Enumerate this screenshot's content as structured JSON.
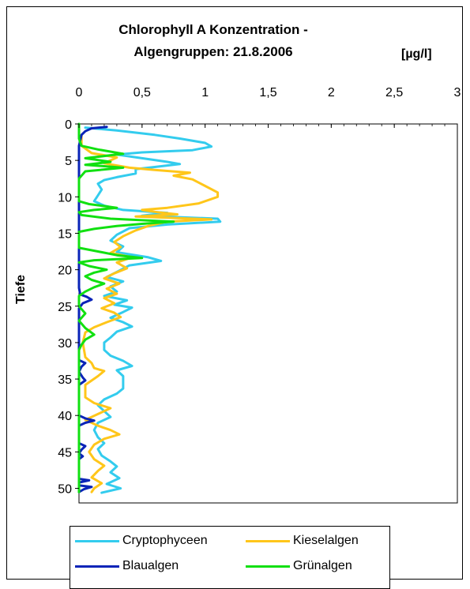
{
  "chart_data": {
    "type": "line",
    "title_line1": "Chlorophyll A Konzentration -",
    "title_line2": "Algengruppen: 21.8.2006",
    "unit": "[µg/l]",
    "xlabel": "",
    "ylabel": "Tiefe",
    "xlim": [
      0,
      3
    ],
    "ylim": [
      0,
      52
    ],
    "x_axis_position": "top",
    "y_inverted": true,
    "x_ticks": [
      0,
      0.5,
      1,
      1.5,
      2,
      2.5,
      3
    ],
    "x_tick_labels": [
      "0",
      "0,5",
      "1",
      "1,5",
      "2",
      "2,5",
      "3"
    ],
    "y_ticks": [
      0,
      5,
      10,
      15,
      20,
      25,
      30,
      35,
      40,
      45,
      50
    ],
    "y_tick_labels": [
      "0",
      "5",
      "10",
      "15",
      "20",
      "25",
      "30",
      "35",
      "40",
      "45",
      "50"
    ],
    "grid": false,
    "legend_position": "bottom",
    "series": [
      {
        "name": "Cryptophyceen",
        "color": "#33CCEE",
        "points": [
          [
            0.05,
            0.5
          ],
          [
            0.3,
            0.9
          ],
          [
            0.6,
            1.5
          ],
          [
            0.8,
            2.0
          ],
          [
            1.0,
            2.6
          ],
          [
            1.05,
            3.1
          ],
          [
            0.9,
            3.6
          ],
          [
            0.5,
            3.9
          ],
          [
            0.3,
            4.2
          ],
          [
            0.5,
            4.7
          ],
          [
            0.7,
            5.2
          ],
          [
            0.8,
            5.5
          ],
          [
            0.6,
            5.9
          ],
          [
            0.45,
            6.2
          ],
          [
            0.45,
            6.8
          ],
          [
            0.3,
            7.3
          ],
          [
            0.2,
            7.7
          ],
          [
            0.15,
            8.2
          ],
          [
            0.18,
            9.0
          ],
          [
            0.15,
            9.8
          ],
          [
            0.12,
            10.6
          ],
          [
            0.2,
            11.2
          ],
          [
            0.35,
            11.8
          ],
          [
            0.7,
            12.2
          ],
          [
            0.5,
            12.6
          ],
          [
            1.1,
            13.0
          ],
          [
            1.12,
            13.4
          ],
          [
            0.7,
            13.8
          ],
          [
            0.4,
            14.3
          ],
          [
            0.3,
            15.2
          ],
          [
            0.25,
            16.0
          ],
          [
            0.35,
            16.8
          ],
          [
            0.3,
            17.6
          ],
          [
            0.55,
            18.3
          ],
          [
            0.65,
            18.8
          ],
          [
            0.4,
            19.4
          ],
          [
            0.3,
            20.3
          ],
          [
            0.22,
            21.0
          ],
          [
            0.35,
            21.6
          ],
          [
            0.25,
            22.3
          ],
          [
            0.3,
            23.0
          ],
          [
            0.2,
            23.6
          ],
          [
            0.38,
            24.2
          ],
          [
            0.28,
            24.8
          ],
          [
            0.42,
            25.2
          ],
          [
            0.35,
            25.8
          ],
          [
            0.25,
            26.6
          ],
          [
            0.35,
            27.2
          ],
          [
            0.42,
            27.8
          ],
          [
            0.3,
            28.5
          ],
          [
            0.25,
            29.3
          ],
          [
            0.2,
            30.0
          ],
          [
            0.2,
            31.0
          ],
          [
            0.25,
            31.8
          ],
          [
            0.35,
            32.5
          ],
          [
            0.42,
            33.2
          ],
          [
            0.3,
            33.8
          ],
          [
            0.35,
            34.6
          ],
          [
            0.35,
            35.5
          ],
          [
            0.35,
            36.3
          ],
          [
            0.3,
            37.0
          ],
          [
            0.2,
            37.8
          ],
          [
            0.15,
            38.6
          ],
          [
            0.2,
            39.4
          ],
          [
            0.25,
            40.2
          ],
          [
            0.15,
            41.0
          ],
          [
            0.12,
            42.0
          ],
          [
            0.15,
            43.0
          ],
          [
            0.2,
            43.8
          ],
          [
            0.15,
            44.6
          ],
          [
            0.18,
            45.5
          ],
          [
            0.25,
            46.3
          ],
          [
            0.3,
            47.0
          ],
          [
            0.25,
            47.8
          ],
          [
            0.32,
            48.6
          ],
          [
            0.22,
            49.4
          ],
          [
            0.33,
            50.0
          ],
          [
            0.18,
            50.6
          ]
        ]
      },
      {
        "name": "Kieselalgen",
        "color": "#FFC61A",
        "points": [
          [
            0.02,
            1.5
          ],
          [
            0.02,
            3.0
          ],
          [
            0.1,
            4.0
          ],
          [
            0.3,
            4.6
          ],
          [
            0.2,
            5.4
          ],
          [
            0.4,
            6.0
          ],
          [
            0.6,
            6.3
          ],
          [
            0.88,
            6.7
          ],
          [
            0.75,
            7.1
          ],
          [
            0.9,
            7.6
          ],
          [
            1.0,
            8.5
          ],
          [
            1.1,
            9.4
          ],
          [
            1.1,
            10.0
          ],
          [
            0.95,
            10.9
          ],
          [
            0.7,
            11.5
          ],
          [
            0.5,
            11.8
          ],
          [
            0.62,
            12.1
          ],
          [
            0.78,
            12.4
          ],
          [
            0.45,
            12.7
          ],
          [
            1.05,
            13.1
          ],
          [
            0.7,
            13.4
          ],
          [
            0.55,
            14.0
          ],
          [
            0.45,
            14.6
          ],
          [
            0.35,
            15.4
          ],
          [
            0.28,
            16.2
          ],
          [
            0.33,
            16.9
          ],
          [
            0.25,
            17.7
          ],
          [
            0.42,
            18.3
          ],
          [
            0.3,
            19.0
          ],
          [
            0.38,
            19.8
          ],
          [
            0.28,
            20.5
          ],
          [
            0.2,
            21.2
          ],
          [
            0.32,
            21.9
          ],
          [
            0.22,
            22.6
          ],
          [
            0.3,
            23.3
          ],
          [
            0.2,
            23.9
          ],
          [
            0.28,
            24.6
          ],
          [
            0.18,
            25.3
          ],
          [
            0.28,
            25.9
          ],
          [
            0.33,
            26.5
          ],
          [
            0.22,
            27.2
          ],
          [
            0.12,
            27.9
          ],
          [
            0.05,
            28.6
          ],
          [
            0.03,
            30.0
          ],
          [
            0.05,
            32.0
          ],
          [
            0.1,
            32.8
          ],
          [
            0.12,
            33.5
          ],
          [
            0.2,
            33.9
          ],
          [
            0.15,
            34.6
          ],
          [
            0.05,
            35.8
          ],
          [
            0.05,
            37.5
          ],
          [
            0.12,
            38.3
          ],
          [
            0.25,
            39.0
          ],
          [
            0.15,
            39.8
          ],
          [
            0.05,
            40.6
          ],
          [
            0.15,
            41.4
          ],
          [
            0.25,
            42.0
          ],
          [
            0.32,
            42.6
          ],
          [
            0.2,
            43.2
          ],
          [
            0.12,
            44.0
          ],
          [
            0.08,
            45.0
          ],
          [
            0.12,
            46.0
          ],
          [
            0.2,
            46.9
          ],
          [
            0.15,
            47.6
          ],
          [
            0.1,
            48.5
          ],
          [
            0.18,
            49.3
          ],
          [
            0.12,
            50.0
          ],
          [
            0.1,
            50.5
          ]
        ]
      },
      {
        "name": "Blaualgen",
        "color": "#0A24B8",
        "points": [
          [
            0.22,
            0.4
          ],
          [
            0.1,
            0.6
          ],
          [
            0.05,
            1.0
          ],
          [
            0.02,
            1.5
          ],
          [
            0.0,
            3.0
          ],
          [
            0.0,
            5.0
          ],
          [
            0.0,
            10.0
          ],
          [
            0.0,
            15.0
          ],
          [
            0.0,
            20.0
          ],
          [
            0.0,
            22.5
          ],
          [
            0.01,
            23.4
          ],
          [
            0.06,
            23.7
          ],
          [
            0.1,
            24.1
          ],
          [
            0.03,
            24.6
          ],
          [
            0.0,
            25.3
          ],
          [
            0.0,
            30.0
          ],
          [
            0.0,
            32.4
          ],
          [
            0.05,
            32.8
          ],
          [
            0.02,
            33.3
          ],
          [
            0.0,
            34.0
          ],
          [
            0.03,
            34.8
          ],
          [
            0.05,
            35.2
          ],
          [
            0.0,
            35.8
          ],
          [
            0.0,
            38.0
          ],
          [
            0.0,
            40.0
          ],
          [
            0.05,
            40.4
          ],
          [
            0.12,
            40.7
          ],
          [
            0.05,
            41.0
          ],
          [
            0.0,
            41.4
          ],
          [
            0.0,
            43.0
          ],
          [
            0.0,
            43.8
          ],
          [
            0.05,
            44.2
          ],
          [
            0.02,
            44.7
          ],
          [
            0.0,
            45.2
          ],
          [
            0.03,
            45.6
          ],
          [
            0.0,
            46.0
          ],
          [
            0.0,
            48.0
          ],
          [
            0.0,
            48.7
          ],
          [
            0.08,
            48.9
          ],
          [
            0.0,
            49.2
          ],
          [
            0.0,
            49.6
          ],
          [
            0.1,
            49.8
          ],
          [
            0.04,
            50.1
          ],
          [
            0.0,
            50.5
          ]
        ]
      },
      {
        "name": "Grünalgen",
        "color": "#11E011",
        "points": [
          [
            0.0,
            0.0
          ],
          [
            0.0,
            2.0
          ],
          [
            0.02,
            3.0
          ],
          [
            0.15,
            3.5
          ],
          [
            0.35,
            4.1
          ],
          [
            0.05,
            4.7
          ],
          [
            0.25,
            5.2
          ],
          [
            0.05,
            5.6
          ],
          [
            0.35,
            6.0
          ],
          [
            0.05,
            6.5
          ],
          [
            0.0,
            7.5
          ],
          [
            0.0,
            10.0
          ],
          [
            0.0,
            10.6
          ],
          [
            0.08,
            11.0
          ],
          [
            0.3,
            11.5
          ],
          [
            0.12,
            11.8
          ],
          [
            0.0,
            12.1
          ],
          [
            0.02,
            12.5
          ],
          [
            0.25,
            13.0
          ],
          [
            0.75,
            13.4
          ],
          [
            0.5,
            13.7
          ],
          [
            0.3,
            14.0
          ],
          [
            0.12,
            14.4
          ],
          [
            0.0,
            14.8
          ],
          [
            0.0,
            16.0
          ],
          [
            0.0,
            17.0
          ],
          [
            0.15,
            17.5
          ],
          [
            0.3,
            18.0
          ],
          [
            0.5,
            18.4
          ],
          [
            0.12,
            18.7
          ],
          [
            0.0,
            19.0
          ],
          [
            0.08,
            19.5
          ],
          [
            0.22,
            20.0
          ],
          [
            0.12,
            20.4
          ],
          [
            0.05,
            20.9
          ],
          [
            0.1,
            21.4
          ],
          [
            0.2,
            21.9
          ],
          [
            0.12,
            22.4
          ],
          [
            0.05,
            23.0
          ],
          [
            0.0,
            23.6
          ],
          [
            0.0,
            25.0
          ],
          [
            0.05,
            26.0
          ],
          [
            0.0,
            27.0
          ],
          [
            0.05,
            28.0
          ],
          [
            0.12,
            28.9
          ],
          [
            0.05,
            29.6
          ],
          [
            0.02,
            30.3
          ],
          [
            0.0,
            31.0
          ],
          [
            0.0,
            35.0
          ],
          [
            0.0,
            40.0
          ],
          [
            0.0,
            45.0
          ],
          [
            0.0,
            50.5
          ]
        ]
      }
    ]
  }
}
